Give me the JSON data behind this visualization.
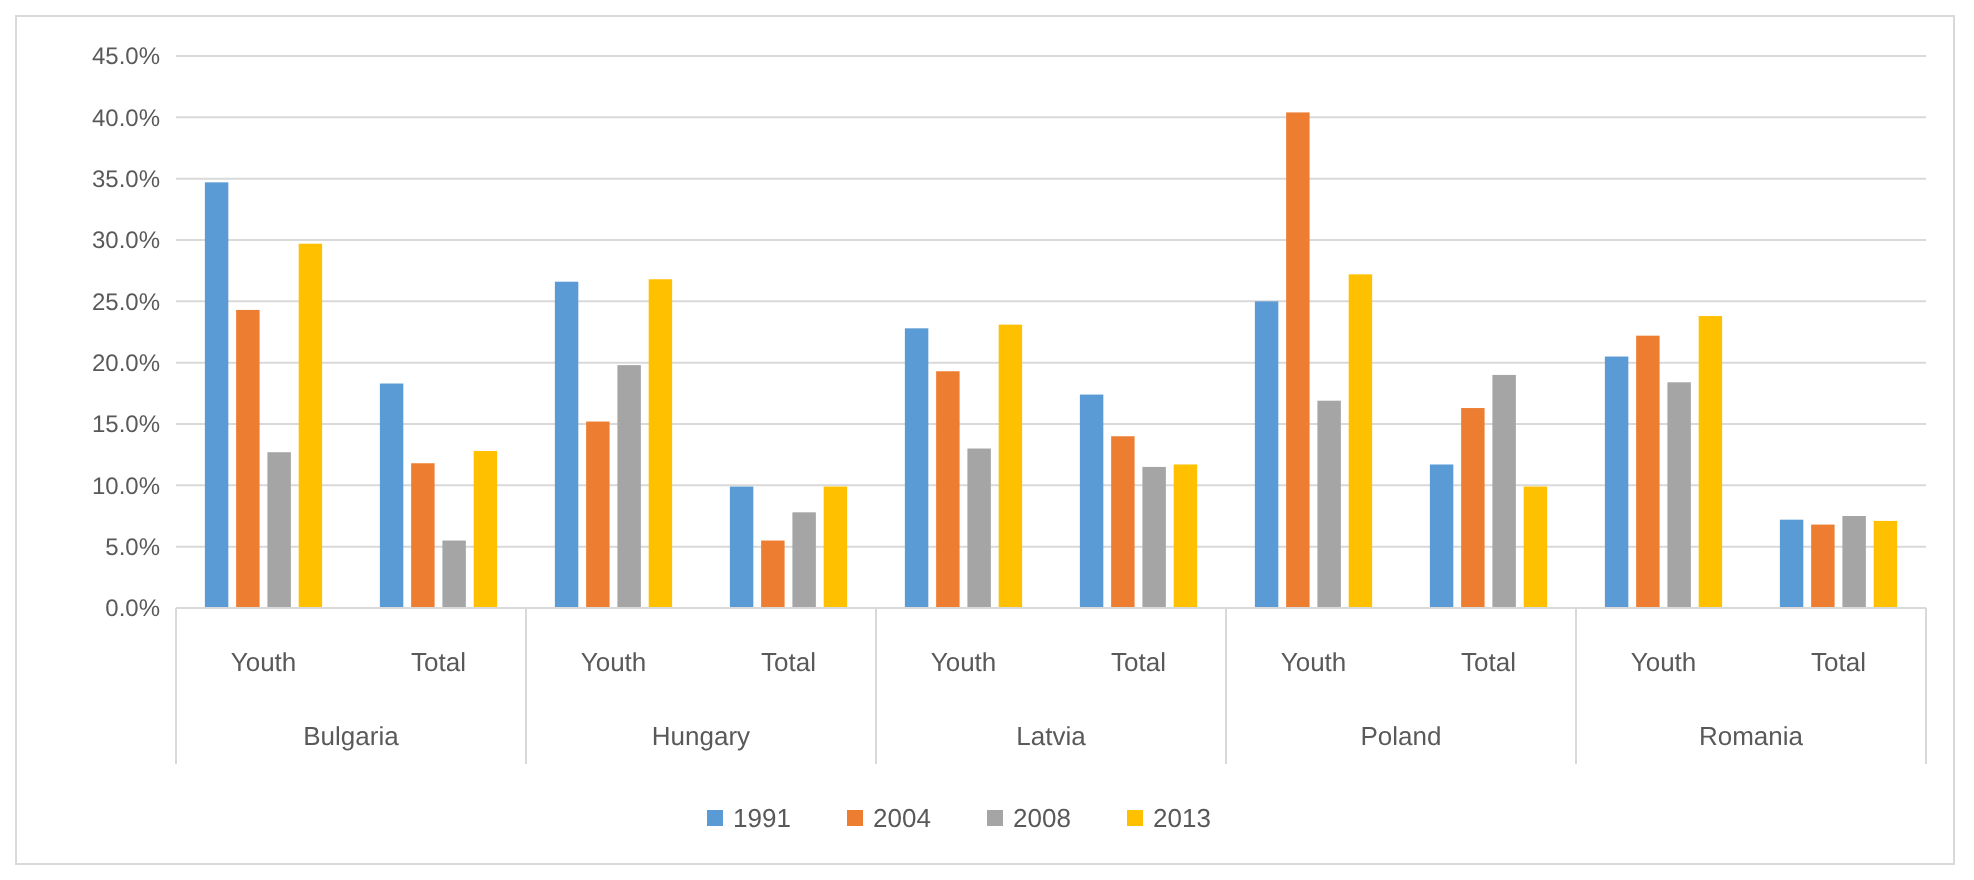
{
  "chart_data": {
    "type": "bar",
    "categories": [
      "Youth",
      "Total",
      "Youth",
      "Total",
      "Youth",
      "Total",
      "Youth",
      "Total",
      "Youth",
      "Total"
    ],
    "annotations": [
      "Bulgaria",
      "Hungary",
      "Latvia",
      "Poland",
      "Romania"
    ],
    "series": [
      {
        "name": "1991",
        "color": "#5b9bd5",
        "values": [
          34.7,
          18.3,
          26.6,
          9.9,
          22.8,
          17.4,
          25.0,
          11.7,
          20.5,
          7.2
        ]
      },
      {
        "name": "2004",
        "color": "#ed7d31",
        "values": [
          24.3,
          11.8,
          15.2,
          5.5,
          19.3,
          14.0,
          40.4,
          16.3,
          22.2,
          6.8
        ]
      },
      {
        "name": "2008",
        "color": "#a5a5a5",
        "values": [
          12.7,
          5.5,
          19.8,
          7.8,
          13.0,
          11.5,
          16.9,
          19.0,
          18.4,
          7.5
        ]
      },
      {
        "name": "2013",
        "color": "#ffc000",
        "values": [
          29.7,
          12.8,
          26.8,
          9.9,
          23.1,
          11.7,
          27.2,
          9.9,
          23.8,
          7.1
        ]
      }
    ],
    "ylim": [
      0,
      45
    ],
    "yticks": [
      {
        "value": 0,
        "label": "0.0%"
      },
      {
        "value": 5,
        "label": "5.0%"
      },
      {
        "value": 10,
        "label": "10.0%"
      },
      {
        "value": 15,
        "label": "15.0%"
      },
      {
        "value": 20,
        "label": "20.0%"
      },
      {
        "value": 25,
        "label": "25.0%"
      },
      {
        "value": 30,
        "label": "30.0%"
      },
      {
        "value": 35,
        "label": "35.0%"
      },
      {
        "value": 40,
        "label": "40.0%"
      },
      {
        "value": 45,
        "label": "45.0%"
      }
    ],
    "grid": "y",
    "legend": "bottom"
  }
}
